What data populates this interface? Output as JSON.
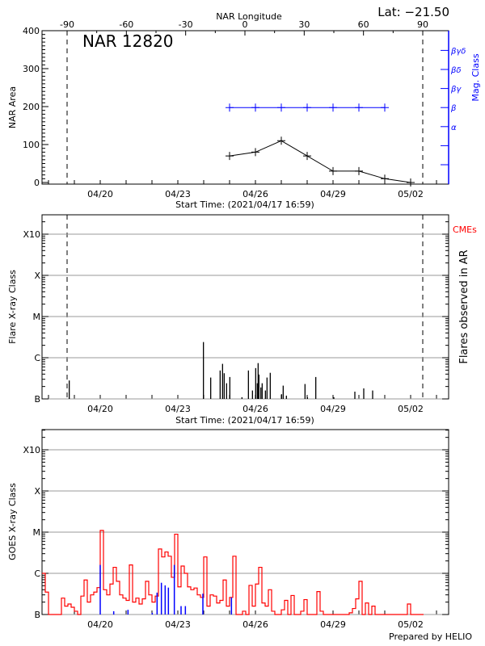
{
  "header": {
    "region_label": "NAR 12820",
    "latitude": "Lat: −21.50",
    "longitude_axis_title": "NAR Longitude",
    "footer": "Prepared by HELIO"
  },
  "colors": {
    "axis": "#000000",
    "grid": "#999999",
    "mag_class": "#0000ff",
    "goes_long": "#ff0000",
    "goes_short": "#0000ff",
    "cme": "#ff0000"
  },
  "chart_data": [
    {
      "type": "line",
      "panel": "nar-area",
      "xlabel": "Start Time: (2021/04/17 16:59)",
      "ylabel": "NAR Area",
      "y2label": "Mag. Class",
      "ylim": [
        0,
        400
      ],
      "x_ticks": [
        "04/20",
        "04/23",
        "04/26",
        "04/29",
        "05/02"
      ],
      "y_ticks": [
        "0",
        "100",
        "200",
        "300",
        "400"
      ],
      "top_axis_ticks": [
        "-90",
        "-60",
        "-30",
        "0",
        "30",
        "60",
        "90"
      ],
      "limb_longitudes": [
        -90,
        90
      ],
      "mag_class_ticks": [
        "",
        "",
        "α",
        "β",
        "βγ",
        "βδ",
        "βγδ"
      ],
      "area": [
        {
          "t": "04/25 00:00",
          "v": 70
        },
        {
          "t": "04/26 00:00",
          "v": 80
        },
        {
          "t": "04/27 00:00",
          "v": 110
        },
        {
          "t": "04/28 00:00",
          "v": 70
        },
        {
          "t": "04/29 00:00",
          "v": 30
        },
        {
          "t": "04/30 00:00",
          "v": 30
        },
        {
          "t": "05/01 00:00",
          "v": 10
        },
        {
          "t": "05/02 00:00",
          "v": 0
        }
      ],
      "mag_class": [
        {
          "t": "04/25 00:00",
          "c": "β"
        },
        {
          "t": "04/26 00:00",
          "c": "β"
        },
        {
          "t": "04/27 00:00",
          "c": "β"
        },
        {
          "t": "04/28 00:00",
          "c": "β"
        },
        {
          "t": "04/29 00:00",
          "c": "β"
        },
        {
          "t": "04/30 00:00",
          "c": "β"
        },
        {
          "t": "05/01 00:00",
          "c": "β"
        }
      ],
      "grid": false
    },
    {
      "type": "bar",
      "panel": "flares",
      "xlabel": "Start Time: (2021/04/17 16:59)",
      "ylabel": "Flare X-ray Class",
      "y2label": "Flares observed in AR",
      "legend": "CMEs",
      "y_scale": "log",
      "x_ticks": [
        "04/20",
        "04/23",
        "04/26",
        "04/29",
        "05/02"
      ],
      "y_ticks": [
        "B",
        "C",
        "M",
        "X",
        "X10"
      ],
      "limb_longitudes": [
        -90,
        90
      ],
      "grid": true,
      "flares": [
        {
          "t": "04/18 19:15",
          "c": "B2.8"
        },
        {
          "t": "04/23 23:45",
          "c": "C2.4"
        },
        {
          "t": "04/24 06:30",
          "c": "B3.3"
        },
        {
          "t": "04/24 15:15",
          "c": "B4.9"
        },
        {
          "t": "04/24 17:30",
          "c": "B7.1"
        },
        {
          "t": "04/24 19:00",
          "c": "B4.2"
        },
        {
          "t": "04/24 21:15",
          "c": "B2.4"
        },
        {
          "t": "04/25 00:15",
          "c": "B3.4"
        },
        {
          "t": "04/25 11:30",
          "c": "B1.1"
        },
        {
          "t": "04/25 17:30",
          "c": "B4.9"
        },
        {
          "t": "04/25 21:15",
          "c": "B1.6"
        },
        {
          "t": "04/26 00:15",
          "c": "B5.6"
        },
        {
          "t": "04/26 01:45",
          "c": "B2.4"
        },
        {
          "t": "04/26 02:30",
          "c": "B7.4"
        },
        {
          "t": "04/26 03:15",
          "c": "B3.9"
        },
        {
          "t": "04/26 05:00",
          "c": "B1.9"
        },
        {
          "t": "04/26 06:15",
          "c": "B2.4"
        },
        {
          "t": "04/26 09:15",
          "c": "B1.6"
        },
        {
          "t": "04/26 10:45",
          "c": "B3.3"
        },
        {
          "t": "04/26 13:45",
          "c": "B4.3"
        },
        {
          "t": "04/27 00:15",
          "c": "B1.3"
        },
        {
          "t": "04/27 01:45",
          "c": "B2.1"
        },
        {
          "t": "04/27 04:45",
          "c": "B1.2"
        },
        {
          "t": "04/27 22:00",
          "c": "B2.3"
        },
        {
          "t": "04/28 00:15",
          "c": "B1.1"
        },
        {
          "t": "04/28 08:00",
          "c": "B3.4"
        },
        {
          "t": "04/29 00:45",
          "c": "B1.1"
        },
        {
          "t": "04/29 20:15",
          "c": "B1.5"
        },
        {
          "t": "04/30 04:30",
          "c": "B1.8"
        },
        {
          "t": "04/30 12:45",
          "c": "B1.6"
        }
      ]
    },
    {
      "type": "line",
      "panel": "goes",
      "ylabel": "GOES X-ray Class",
      "y_scale": "log",
      "x_ticks": [
        "04/20",
        "04/23",
        "04/26",
        "04/29",
        "05/02"
      ],
      "y_ticks": [
        "B",
        "C",
        "M",
        "X",
        "X10"
      ],
      "grid": true,
      "long_channel": [
        [
          "04/17 18:00",
          "C1.0"
        ],
        [
          "04/17 21:00",
          "B3.5"
        ],
        [
          "04/18 00:00",
          "A5"
        ],
        [
          "04/18 03:00",
          "A5"
        ],
        [
          "04/18 06:00",
          "A5"
        ],
        [
          "04/18 09:00",
          "A5"
        ],
        [
          "04/18 12:00",
          "B2.5"
        ],
        [
          "04/18 15:00",
          "B1.6"
        ],
        [
          "04/18 18:00",
          "B1.8"
        ],
        [
          "04/18 21:00",
          "B1.5"
        ],
        [
          "04/19 00:00",
          "B1.2"
        ],
        [
          "04/19 03:00",
          "A5"
        ],
        [
          "04/19 06:00",
          "B2.8"
        ],
        [
          "04/19 09:00",
          "B6.9"
        ],
        [
          "04/19 12:00",
          "B2.0"
        ],
        [
          "04/19 15:00",
          "B3.0"
        ],
        [
          "04/19 18:00",
          "B3.5"
        ],
        [
          "04/19 21:00",
          "B4.5"
        ],
        [
          "04/20 00:00",
          "M1.1"
        ],
        [
          "04/20 03:00",
          "B4.0"
        ],
        [
          "04/20 06:00",
          "B3.0"
        ],
        [
          "04/20 09:00",
          "B5.5"
        ],
        [
          "04/20 12:00",
          "C1.4"
        ],
        [
          "04/20 15:00",
          "B6.4"
        ],
        [
          "04/20 18:00",
          "B3.0"
        ],
        [
          "04/20 21:00",
          "B2.5"
        ],
        [
          "04/21 00:00",
          "B2.2"
        ],
        [
          "04/21 03:00",
          "C1.6"
        ],
        [
          "04/21 06:00",
          "B2.0"
        ],
        [
          "04/21 09:00",
          "B2.5"
        ],
        [
          "04/21 12:00",
          "B1.8"
        ],
        [
          "04/21 15:00",
          "B2.4"
        ],
        [
          "04/21 18:00",
          "B6.4"
        ],
        [
          "04/21 21:00",
          "B3.0"
        ],
        [
          "04/22 00:00",
          "B2.0"
        ],
        [
          "04/22 03:00",
          "B2.8"
        ],
        [
          "04/22 06:00",
          "C3.9"
        ],
        [
          "04/22 09:00",
          "C2.5"
        ],
        [
          "04/22 12:00",
          "C3.3"
        ],
        [
          "04/22 15:00",
          "C2.6"
        ],
        [
          "04/22 18:00",
          "B8.0"
        ],
        [
          "04/22 21:00",
          "C8.9"
        ],
        [
          "04/23 00:00",
          "B4.7"
        ],
        [
          "04/23 03:00",
          "C1.5"
        ],
        [
          "04/23 06:00",
          "C1.0"
        ],
        [
          "04/23 09:00",
          "B4.7"
        ],
        [
          "04/23 12:00",
          "B4.0"
        ],
        [
          "04/23 15:00",
          "B4.4"
        ],
        [
          "04/23 18:00",
          "B3.0"
        ],
        [
          "04/23 21:00",
          "B2.6"
        ],
        [
          "04/24 00:00",
          "C2.5"
        ],
        [
          "04/24 03:00",
          "B1.6"
        ],
        [
          "04/24 06:00",
          "B3.0"
        ],
        [
          "04/24 09:00",
          "B2.8"
        ],
        [
          "04/24 12:00",
          "B1.9"
        ],
        [
          "04/24 15:00",
          "B2.2"
        ],
        [
          "04/24 18:00",
          "B6.9"
        ],
        [
          "04/24 21:00",
          "B1.6"
        ],
        [
          "04/25 00:00",
          "B2.6"
        ],
        [
          "04/25 03:00",
          "C2.6"
        ],
        [
          "04/25 06:00",
          "A5"
        ],
        [
          "04/25 09:00",
          "A5"
        ],
        [
          "04/25 12:00",
          "B1.2"
        ],
        [
          "04/25 15:00",
          "A5"
        ],
        [
          "04/25 18:00",
          "B5.1"
        ],
        [
          "04/25 21:00",
          "B1.6"
        ],
        [
          "04/26 00:00",
          "B5.5"
        ],
        [
          "04/26 03:00",
          "C1.4"
        ],
        [
          "04/26 06:00",
          "B1.9"
        ],
        [
          "04/26 09:00",
          "B1.6"
        ],
        [
          "04/26 12:00",
          "B4.0"
        ],
        [
          "04/26 15:00",
          "B1.2"
        ],
        [
          "04/26 18:00",
          "A5"
        ],
        [
          "04/26 21:00",
          "A5"
        ],
        [
          "04/27 00:00",
          "B1.3"
        ],
        [
          "04/27 03:00",
          "B2.2"
        ],
        [
          "04/27 06:00",
          "A5"
        ],
        [
          "04/27 09:00",
          "B2.9"
        ],
        [
          "04/27 12:00",
          "A5"
        ],
        [
          "04/27 15:00",
          "A5"
        ],
        [
          "04/27 18:00",
          "B1.2"
        ],
        [
          "04/27 21:00",
          "B2.3"
        ],
        [
          "04/28 00:00",
          "A5"
        ],
        [
          "04/28 03:00",
          "A5"
        ],
        [
          "04/28 06:00",
          "A5"
        ],
        [
          "04/28 09:00",
          "B3.6"
        ],
        [
          "04/28 12:00",
          "B1.2"
        ],
        [
          "04/28 15:00",
          "A5"
        ],
        [
          "04/28 18:00",
          "A5"
        ],
        [
          "04/28 21:00",
          "A5"
        ],
        [
          "04/29 00:00",
          "A5"
        ],
        [
          "04/29 03:00",
          "A5"
        ],
        [
          "04/29 06:00",
          "A5"
        ],
        [
          "04/29 09:00",
          "A5"
        ],
        [
          "04/29 12:00",
          "A5"
        ],
        [
          "04/29 15:00",
          "B1.1"
        ],
        [
          "04/29 18:00",
          "B1.4"
        ],
        [
          "04/29 21:00",
          "B2.4"
        ],
        [
          "04/30 00:00",
          "B6.4"
        ],
        [
          "04/30 03:00",
          "A5"
        ],
        [
          "04/30 06:00",
          "B1.9"
        ],
        [
          "04/30 09:00",
          "A5"
        ],
        [
          "04/30 12:00",
          "B1.6"
        ],
        [
          "04/30 15:00",
          "A5"
        ],
        [
          "04/30 18:00",
          "A5"
        ],
        [
          "04/30 21:00",
          "A5"
        ],
        [
          "05/01 00:00",
          "A5"
        ],
        [
          "05/01 03:00",
          "A5"
        ],
        [
          "05/01 06:00",
          "A5"
        ],
        [
          "05/01 09:00",
          "A5"
        ],
        [
          "05/01 12:00",
          "A5"
        ],
        [
          "05/01 15:00",
          "A5"
        ],
        [
          "05/01 18:00",
          "A5"
        ],
        [
          "05/01 21:00",
          "B1.8"
        ],
        [
          "05/02 00:00",
          "A5"
        ],
        [
          "05/02 03:00",
          "A5"
        ],
        [
          "05/02 06:00",
          "A5"
        ],
        [
          "05/02 09:00",
          "A5"
        ],
        [
          "05/02 12:00",
          "A5"
        ]
      ],
      "short_channel_events": [
        {
          "t": "04/20 00:00",
          "c": "C1.6"
        },
        {
          "t": "04/20 12:30",
          "c": "B1.2"
        },
        {
          "t": "04/21 01:45",
          "c": "B1.3"
        },
        {
          "t": "04/22 00:15",
          "c": "B1.1"
        },
        {
          "t": "04/22 04:45",
          "c": "B3.4"
        },
        {
          "t": "04/22 08:45",
          "c": "B5.9"
        },
        {
          "t": "04/22 12:15",
          "c": "B5.1"
        },
        {
          "t": "04/22 15:15",
          "c": "B4.5"
        },
        {
          "t": "04/22 20:45",
          "c": "C1.6"
        },
        {
          "t": "04/23 03:00",
          "c": "B1.6"
        },
        {
          "t": "04/23 07:00",
          "c": "B1.6"
        },
        {
          "t": "04/23 23:15",
          "c": "B3.2"
        },
        {
          "t": "04/25 01:45",
          "c": "B2.6"
        }
      ]
    }
  ]
}
